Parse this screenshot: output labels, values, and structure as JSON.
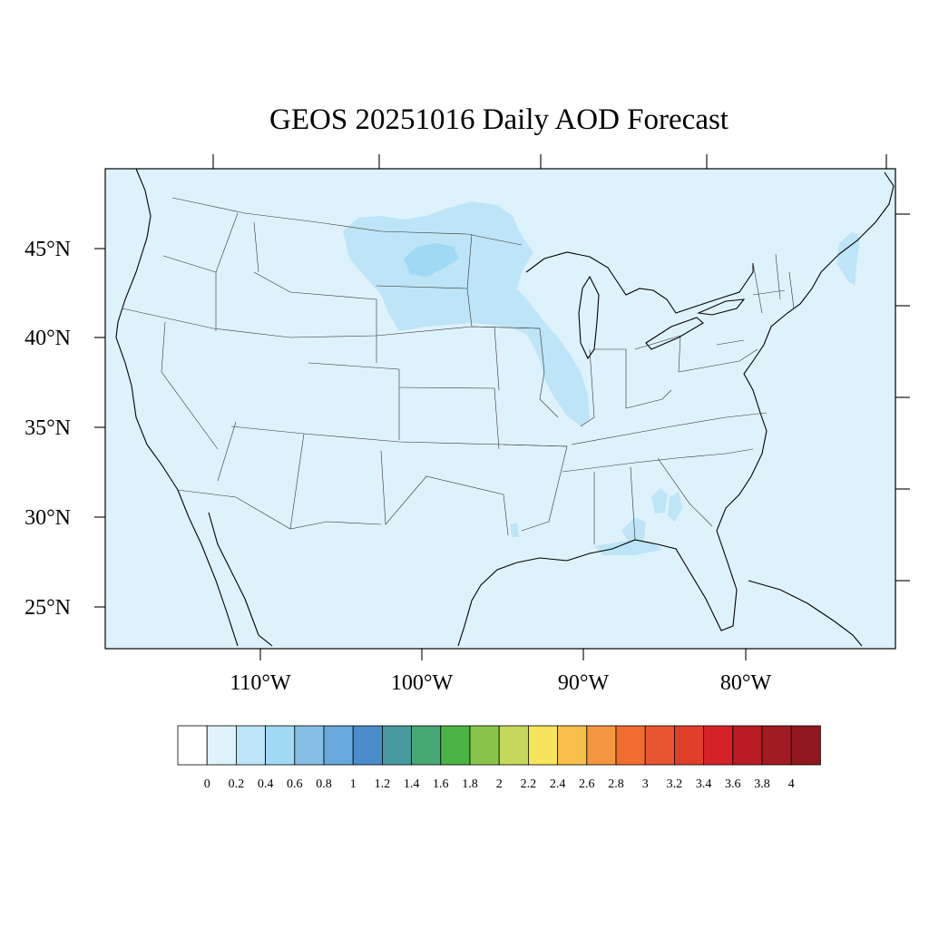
{
  "title": "GEOS 20251016 Daily AOD Forecast",
  "map": {
    "background_color": "#def2fb",
    "lat_labels": [
      "45°N",
      "40°N",
      "35°N",
      "30°N",
      "25°N"
    ],
    "lon_labels": [
      "110°W",
      "100°W",
      "90°W",
      "80°W"
    ],
    "plume_colors": {
      "level_02_04": "#bde5f7",
      "level_04_06": "#a0d9f3"
    }
  },
  "colorbar": {
    "labels": [
      "0",
      "0.2",
      "0.4",
      "0.6",
      "0.8",
      "1",
      "1.2",
      "1.4",
      "1.6",
      "1.8",
      "2",
      "2.2",
      "2.4",
      "2.6",
      "2.8",
      "3",
      "3.2",
      "3.4",
      "3.6",
      "3.8",
      "4"
    ],
    "colors": [
      "#ffffff",
      "#def2fb",
      "#bde5f7",
      "#a0d9f3",
      "#85bfe5",
      "#68a8da",
      "#4a8dca",
      "#479a9c",
      "#46a872",
      "#4bb344",
      "#88c44a",
      "#c6d95a",
      "#f8e35c",
      "#f8bf4b",
      "#f6963e",
      "#f26c30",
      "#e85530",
      "#df3f2a",
      "#d42228",
      "#b91c24",
      "#a11b21",
      "#8f171c"
    ]
  }
}
